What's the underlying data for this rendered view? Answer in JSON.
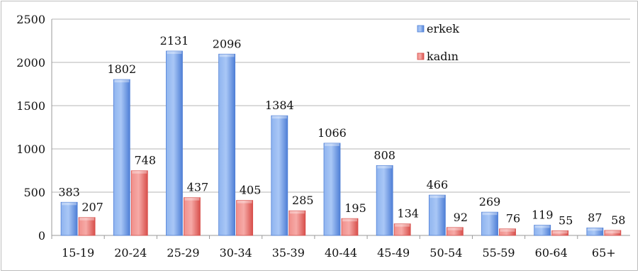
{
  "chart_data": {
    "type": "bar",
    "categories": [
      "15-19",
      "20-24",
      "25-29",
      "30-34",
      "35-39",
      "40-44",
      "45-49",
      "50-54",
      "55-59",
      "60-64",
      "65+"
    ],
    "series": [
      {
        "name": "erkek",
        "values": [
          383,
          1802,
          2131,
          2096,
          1384,
          1066,
          808,
          466,
          269,
          119,
          87
        ],
        "color": "#6f9ae6"
      },
      {
        "name": "kadın",
        "values": [
          207,
          748,
          437,
          405,
          285,
          195,
          134,
          92,
          76,
          55,
          58
        ],
        "color": "#e8706c"
      }
    ],
    "ylim": [
      0,
      2500
    ],
    "yticks": [
      0,
      500,
      1000,
      1500,
      2000,
      2500
    ],
    "grid": true,
    "legend_position": "top-right"
  }
}
